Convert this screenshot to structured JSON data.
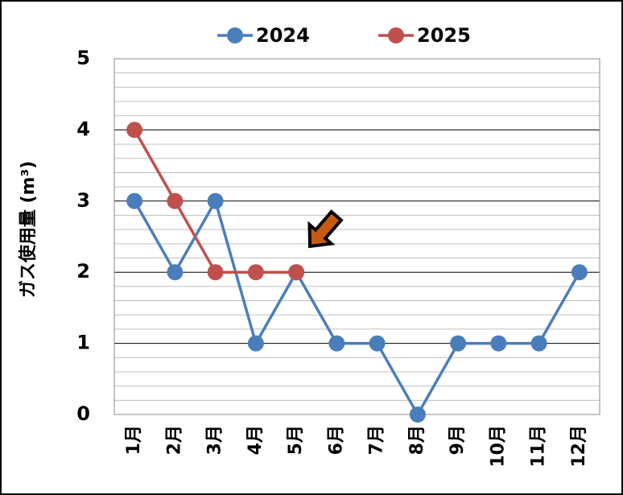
{
  "chart_data": {
    "type": "line",
    "y_label": "ガス使用量 (m³)",
    "categories": [
      "1月",
      "2月",
      "3月",
      "4月",
      "5月",
      "6月",
      "7月",
      "8月",
      "9月",
      "10月",
      "11月",
      "12月"
    ],
    "series": [
      {
        "name": "2024",
        "color": "#4a7ebb",
        "values": [
          3,
          2,
          3,
          1,
          2,
          1,
          1,
          0,
          1,
          1,
          1,
          2
        ]
      },
      {
        "name": "2025",
        "color": "#c0504d",
        "values": [
          4,
          3,
          2,
          2,
          2,
          null,
          null,
          null,
          null,
          null,
          null,
          null
        ]
      }
    ],
    "ylim": [
      0,
      5
    ],
    "yticks": [
      0,
      1,
      2,
      3,
      4,
      5
    ],
    "minor_yticks": [
      0.2,
      0.4,
      0.6,
      0.8,
      1.2,
      1.4,
      1.6,
      1.8,
      2.2,
      2.4,
      2.6,
      2.8,
      3.2,
      3.4,
      3.6,
      3.8,
      4.2,
      4.4,
      4.6,
      4.8
    ],
    "grid": true,
    "legend": "top"
  }
}
